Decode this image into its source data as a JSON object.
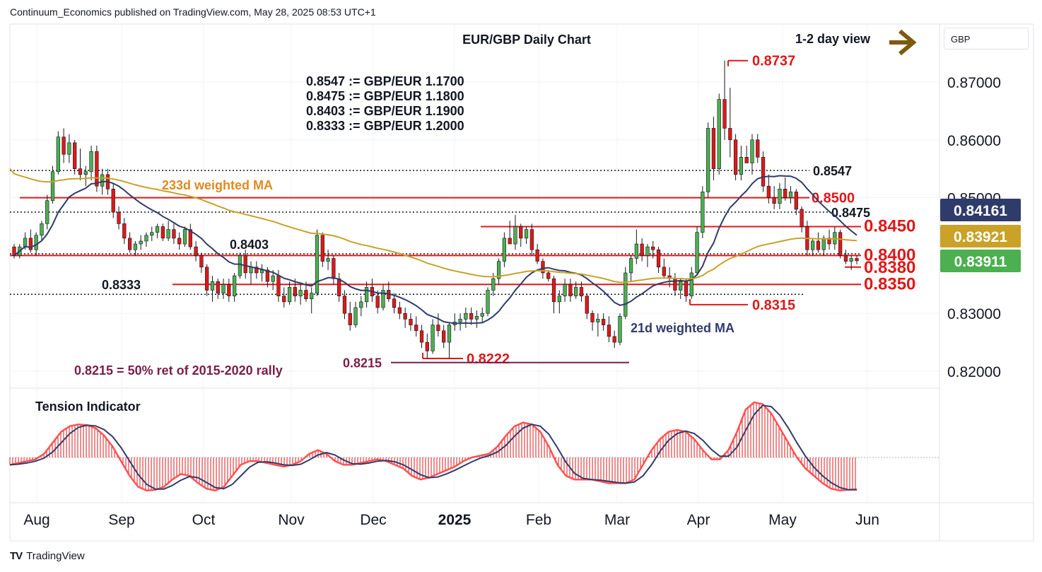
{
  "header": {
    "publisher_line": "Continuum_Economics published on TradingView.com, May 28, 2025 08:53 UTC+1"
  },
  "footer": {
    "brand": "TradingView",
    "logo_icon": "tradingview-logo-icon"
  },
  "currency_label": "GBP",
  "view": {
    "label": "1-2 day view",
    "arrow_icon": "right-arrow-icon",
    "arrow_color": "#7d5a10"
  },
  "chart_data": [
    {
      "type": "candlestick",
      "title": "EUR/GBP Daily Chart",
      "y_axis_ticks": [
        "0.87000",
        "0.86000",
        "0.85000",
        "0.83000",
        "0.82000"
      ],
      "y_axis_tick_values": [
        0.87,
        0.86,
        0.85,
        0.83,
        0.82
      ],
      "ylim": [
        0.818,
        0.88
      ],
      "x_axis_labels": [
        "Aug",
        "Sep",
        "Oct",
        "Nov",
        "Dec",
        "2025",
        "Feb",
        "Mar",
        "Apr",
        "May",
        "Jun"
      ],
      "price_labels": [
        {
          "text": "0.84161",
          "value": 0.84161,
          "color": "#2f3c6b"
        },
        {
          "text": "0.83921",
          "value": 0.83921,
          "color": "#c9a227"
        },
        {
          "text": "0.83911",
          "value": 0.83911,
          "color": "#4caf50"
        }
      ],
      "conversion_notes": [
        "0.8547 := GBP/EUR 1.1700",
        "0.8475 := GBP/EUR 1.1800",
        "0.8403 := GBP/EUR 1.1900",
        "0.8333 := GBP/EUR 1.2000"
      ],
      "levels": [
        {
          "text": "0.8737",
          "value": 0.8737,
          "color": "#e01818",
          "style": "solid"
        },
        {
          "text": "0.8547",
          "value": 0.8547,
          "color": "#131722",
          "style": "dotted"
        },
        {
          "text": "0.8500",
          "value": 0.85,
          "color": "#e01818",
          "style": "solid"
        },
        {
          "text": "0.8475",
          "value": 0.8475,
          "color": "#131722",
          "style": "dotted"
        },
        {
          "text": "0.8450",
          "value": 0.845,
          "color": "#e01818",
          "style": "solid"
        },
        {
          "text": "0.8403",
          "value": 0.8403,
          "color": "#131722",
          "style": "dotted"
        },
        {
          "text": "0.8400",
          "value": 0.84,
          "color": "#e01818",
          "style": "solid"
        },
        {
          "text": "0.8380",
          "value": 0.838,
          "color": "#e01818",
          "style": "solid"
        },
        {
          "text": "0.8350",
          "value": 0.835,
          "color": "#e01818",
          "style": "solid"
        },
        {
          "text": "0.8333",
          "value": 0.8333,
          "color": "#131722",
          "style": "dotted"
        },
        {
          "text": "0.8315",
          "value": 0.8315,
          "color": "#e01818",
          "style": "solid"
        },
        {
          "text": "0.8222",
          "value": 0.8222,
          "color": "#e01818",
          "style": "solid"
        },
        {
          "text": "0.8215",
          "value": 0.8215,
          "color": "#7b1d4a",
          "style": "solid"
        }
      ],
      "annotations": {
        "ma233": "233d weighted MA",
        "ma21": "21d weighted MA",
        "retracement": "0.8215 = 50% ret of 2015-2020 rally"
      },
      "colors": {
        "up": "#4caf50",
        "down": "#e01818",
        "ma21": "#2f3c6b",
        "ma233": "#c9a227"
      },
      "candles_ohlc": [
        [
          0.8415,
          0.842,
          0.8395,
          0.84
        ],
        [
          0.84,
          0.842,
          0.8395,
          0.8415
        ],
        [
          0.8415,
          0.844,
          0.841,
          0.843
        ],
        [
          0.843,
          0.8445,
          0.8405,
          0.841
        ],
        [
          0.841,
          0.844,
          0.84,
          0.8435
        ],
        [
          0.8435,
          0.846,
          0.8425,
          0.8455
        ],
        [
          0.8455,
          0.8505,
          0.8445,
          0.8495
        ],
        [
          0.8495,
          0.8555,
          0.849,
          0.8545
        ],
        [
          0.8545,
          0.8615,
          0.854,
          0.8605
        ],
        [
          0.8605,
          0.862,
          0.856,
          0.8575
        ],
        [
          0.8575,
          0.861,
          0.856,
          0.8595
        ],
        [
          0.8595,
          0.86,
          0.854,
          0.855
        ],
        [
          0.855,
          0.8585,
          0.853,
          0.854
        ],
        [
          0.854,
          0.8555,
          0.852,
          0.8545
        ],
        [
          0.8545,
          0.859,
          0.853,
          0.858
        ],
        [
          0.858,
          0.859,
          0.851,
          0.852
        ],
        [
          0.852,
          0.855,
          0.8505,
          0.854
        ],
        [
          0.854,
          0.855,
          0.8505,
          0.8515
        ],
        [
          0.8515,
          0.8525,
          0.8465,
          0.8475
        ],
        [
          0.8475,
          0.8485,
          0.8445,
          0.8455
        ],
        [
          0.8455,
          0.8465,
          0.842,
          0.843
        ],
        [
          0.843,
          0.844,
          0.8405,
          0.841
        ],
        [
          0.841,
          0.8425,
          0.84,
          0.842
        ],
        [
          0.842,
          0.8435,
          0.841,
          0.8425
        ],
        [
          0.8425,
          0.844,
          0.8415,
          0.8435
        ],
        [
          0.8435,
          0.845,
          0.8425,
          0.844
        ],
        [
          0.844,
          0.8455,
          0.843,
          0.845
        ],
        [
          0.845,
          0.8455,
          0.8425,
          0.843
        ],
        [
          0.843,
          0.846,
          0.8425,
          0.8445
        ],
        [
          0.8445,
          0.8455,
          0.842,
          0.843
        ],
        [
          0.843,
          0.844,
          0.841,
          0.842
        ],
        [
          0.842,
          0.845,
          0.8415,
          0.8445
        ],
        [
          0.8445,
          0.8455,
          0.841,
          0.8415
        ],
        [
          0.8415,
          0.8425,
          0.839,
          0.84
        ],
        [
          0.84,
          0.8405,
          0.837,
          0.838
        ],
        [
          0.838,
          0.8385,
          0.833,
          0.834
        ],
        [
          0.834,
          0.8365,
          0.832,
          0.8355
        ],
        [
          0.8355,
          0.836,
          0.8325,
          0.8335
        ],
        [
          0.8335,
          0.836,
          0.8325,
          0.835
        ],
        [
          0.835,
          0.836,
          0.832,
          0.833
        ],
        [
          0.833,
          0.837,
          0.832,
          0.8365
        ],
        [
          0.8365,
          0.8405,
          0.836,
          0.84
        ],
        [
          0.84,
          0.841,
          0.836,
          0.837
        ],
        [
          0.837,
          0.839,
          0.835,
          0.838
        ],
        [
          0.838,
          0.839,
          0.836,
          0.837
        ],
        [
          0.837,
          0.8385,
          0.8355,
          0.8375
        ],
        [
          0.8375,
          0.838,
          0.8345,
          0.8355
        ],
        [
          0.8355,
          0.8375,
          0.834,
          0.8365
        ],
        [
          0.8365,
          0.8375,
          0.832,
          0.833
        ],
        [
          0.833,
          0.8345,
          0.831,
          0.832
        ],
        [
          0.832,
          0.8355,
          0.8315,
          0.8345
        ],
        [
          0.8345,
          0.836,
          0.832,
          0.833
        ],
        [
          0.833,
          0.835,
          0.8315,
          0.834
        ],
        [
          0.834,
          0.8355,
          0.832,
          0.8325
        ],
        [
          0.8325,
          0.8345,
          0.83,
          0.8335
        ],
        [
          0.8335,
          0.8445,
          0.833,
          0.8435
        ],
        [
          0.8435,
          0.844,
          0.838,
          0.839
        ],
        [
          0.839,
          0.841,
          0.8375,
          0.8395
        ],
        [
          0.8395,
          0.84,
          0.835,
          0.836
        ],
        [
          0.836,
          0.837,
          0.832,
          0.833
        ],
        [
          0.833,
          0.834,
          0.829,
          0.83
        ],
        [
          0.83,
          0.832,
          0.827,
          0.828
        ],
        [
          0.828,
          0.832,
          0.8275,
          0.831
        ],
        [
          0.831,
          0.833,
          0.8295,
          0.832
        ],
        [
          0.832,
          0.8355,
          0.831,
          0.8345
        ],
        [
          0.8345,
          0.836,
          0.832,
          0.833
        ],
        [
          0.833,
          0.834,
          0.83,
          0.831
        ],
        [
          0.831,
          0.835,
          0.8305,
          0.834
        ],
        [
          0.834,
          0.8355,
          0.832,
          0.8325
        ],
        [
          0.8325,
          0.8335,
          0.83,
          0.831
        ],
        [
          0.831,
          0.832,
          0.829,
          0.83
        ],
        [
          0.83,
          0.831,
          0.8275,
          0.829
        ],
        [
          0.829,
          0.83,
          0.827,
          0.828
        ],
        [
          0.828,
          0.8295,
          0.826,
          0.827
        ],
        [
          0.827,
          0.828,
          0.824,
          0.825
        ],
        [
          0.825,
          0.8265,
          0.8222,
          0.8235
        ],
        [
          0.8235,
          0.829,
          0.823,
          0.828
        ],
        [
          0.828,
          0.83,
          0.826,
          0.827
        ],
        [
          0.827,
          0.828,
          0.824,
          0.825
        ],
        [
          0.825,
          0.8285,
          0.8222,
          0.828
        ],
        [
          0.828,
          0.83,
          0.827,
          0.8285
        ],
        [
          0.8285,
          0.83,
          0.827,
          0.829
        ],
        [
          0.829,
          0.831,
          0.8275,
          0.83
        ],
        [
          0.83,
          0.831,
          0.828,
          0.829
        ],
        [
          0.829,
          0.8305,
          0.8275,
          0.8295
        ],
        [
          0.8295,
          0.831,
          0.8285,
          0.83
        ],
        [
          0.83,
          0.8345,
          0.8295,
          0.834
        ],
        [
          0.834,
          0.837,
          0.833,
          0.836
        ],
        [
          0.836,
          0.8395,
          0.835,
          0.839
        ],
        [
          0.839,
          0.844,
          0.838,
          0.843
        ],
        [
          0.843,
          0.846,
          0.842,
          0.842
        ],
        [
          0.842,
          0.847,
          0.841,
          0.845
        ],
        [
          0.845,
          0.8455,
          0.8415,
          0.843
        ],
        [
          0.843,
          0.845,
          0.842,
          0.8445
        ],
        [
          0.8445,
          0.8455,
          0.84,
          0.841
        ],
        [
          0.841,
          0.842,
          0.8385,
          0.839
        ],
        [
          0.839,
          0.8395,
          0.836,
          0.837
        ],
        [
          0.837,
          0.8375,
          0.8355,
          0.836
        ],
        [
          0.836,
          0.8365,
          0.83,
          0.832
        ],
        [
          0.832,
          0.834,
          0.83,
          0.833
        ],
        [
          0.833,
          0.836,
          0.832,
          0.835
        ],
        [
          0.835,
          0.836,
          0.832,
          0.833
        ],
        [
          0.833,
          0.8355,
          0.8325,
          0.8345
        ],
        [
          0.8345,
          0.8355,
          0.832,
          0.833
        ],
        [
          0.833,
          0.8335,
          0.829,
          0.83
        ],
        [
          0.83,
          0.8305,
          0.827,
          0.8285
        ],
        [
          0.8285,
          0.83,
          0.826,
          0.829
        ],
        [
          0.829,
          0.83,
          0.827,
          0.828
        ],
        [
          0.828,
          0.8295,
          0.825,
          0.826
        ],
        [
          0.826,
          0.827,
          0.824,
          0.825
        ],
        [
          0.825,
          0.83,
          0.8245,
          0.8295
        ],
        [
          0.8295,
          0.838,
          0.829,
          0.837
        ],
        [
          0.837,
          0.84,
          0.8355,
          0.8395
        ],
        [
          0.8395,
          0.8445,
          0.8385,
          0.842
        ],
        [
          0.842,
          0.843,
          0.839,
          0.84
        ],
        [
          0.84,
          0.842,
          0.838,
          0.8415
        ],
        [
          0.8415,
          0.8425,
          0.8395,
          0.841
        ],
        [
          0.841,
          0.8415,
          0.837,
          0.838
        ],
        [
          0.838,
          0.8395,
          0.836,
          0.8365
        ],
        [
          0.8365,
          0.838,
          0.8345,
          0.836
        ],
        [
          0.836,
          0.837,
          0.833,
          0.834
        ],
        [
          0.834,
          0.836,
          0.8325,
          0.8355
        ],
        [
          0.8355,
          0.836,
          0.832,
          0.833
        ],
        [
          0.833,
          0.838,
          0.8325,
          0.837
        ],
        [
          0.837,
          0.845,
          0.8365,
          0.844
        ],
        [
          0.844,
          0.852,
          0.843,
          0.851
        ],
        [
          0.851,
          0.863,
          0.85,
          0.862
        ],
        [
          0.862,
          0.864,
          0.853,
          0.855
        ],
        [
          0.855,
          0.868,
          0.854,
          0.867
        ],
        [
          0.867,
          0.8737,
          0.86,
          0.862
        ],
        [
          0.862,
          0.869,
          0.857,
          0.86
        ],
        [
          0.86,
          0.861,
          0.853,
          0.854
        ],
        [
          0.854,
          0.859,
          0.853,
          0.857
        ],
        [
          0.857,
          0.859,
          0.856,
          0.856
        ],
        [
          0.856,
          0.861,
          0.854,
          0.86
        ],
        [
          0.86,
          0.861,
          0.856,
          0.857
        ],
        [
          0.857,
          0.858,
          0.851,
          0.852
        ],
        [
          0.852,
          0.854,
          0.849,
          0.85
        ],
        [
          0.85,
          0.852,
          0.848,
          0.849
        ],
        [
          0.849,
          0.8525,
          0.848,
          0.8515
        ],
        [
          0.8515,
          0.8535,
          0.8495,
          0.85
        ],
        [
          0.85,
          0.852,
          0.849,
          0.851
        ],
        [
          0.851,
          0.8515,
          0.847,
          0.848
        ],
        [
          0.848,
          0.8485,
          0.844,
          0.845
        ],
        [
          0.845,
          0.846,
          0.84,
          0.841
        ],
        [
          0.841,
          0.843,
          0.84,
          0.8425
        ],
        [
          0.8425,
          0.844,
          0.8405,
          0.841
        ],
        [
          0.841,
          0.8435,
          0.84,
          0.843
        ],
        [
          0.843,
          0.8445,
          0.841,
          0.842
        ],
        [
          0.842,
          0.845,
          0.841,
          0.844
        ],
        [
          0.844,
          0.8445,
          0.8395,
          0.84
        ],
        [
          0.84,
          0.841,
          0.8385,
          0.839
        ],
        [
          0.839,
          0.84,
          0.8375,
          0.8395
        ],
        [
          0.8395,
          0.84,
          0.8385,
          0.8391
        ]
      ]
    },
    {
      "type": "histogram",
      "title": "Tension Indicator",
      "colors": {
        "bars": "#e01818",
        "signal": "#2f3c6b",
        "smoothed": "#ff5252"
      },
      "values": [
        -0.2,
        -0.15,
        -0.1,
        -0.05,
        0.1,
        0.4,
        0.7,
        0.85,
        0.9,
        0.88,
        0.8,
        0.6,
        0.3,
        -0.1,
        -0.5,
        -0.8,
        -0.9,
        -0.88,
        -0.8,
        -0.6,
        -0.45,
        -0.5,
        -0.7,
        -0.85,
        -0.9,
        -0.8,
        -0.5,
        -0.2,
        -0.1,
        -0.1,
        -0.15,
        -0.2,
        -0.25,
        -0.2,
        -0.1,
        0.1,
        0.2,
        0.1,
        -0.1,
        -0.2,
        -0.2,
        -0.15,
        -0.1,
        -0.05,
        -0.1,
        -0.2,
        -0.3,
        -0.5,
        -0.6,
        -0.55,
        -0.45,
        -0.35,
        -0.25,
        -0.1,
        0.0,
        0.05,
        0.1,
        0.3,
        0.6,
        0.85,
        0.95,
        0.9,
        0.7,
        0.3,
        -0.2,
        -0.5,
        -0.6,
        -0.6,
        -0.6,
        -0.65,
        -0.7,
        -0.7,
        -0.7,
        -0.6,
        -0.2,
        0.2,
        0.5,
        0.7,
        0.75,
        0.7,
        0.5,
        0.2,
        -0.05,
        -0.05,
        0.2,
        0.7,
        1.3,
        1.5,
        1.45,
        1.2,
        0.8,
        0.4,
        0.0,
        -0.3,
        -0.5,
        -0.7,
        -0.85,
        -0.9,
        -0.88,
        -0.86
      ]
    }
  ]
}
